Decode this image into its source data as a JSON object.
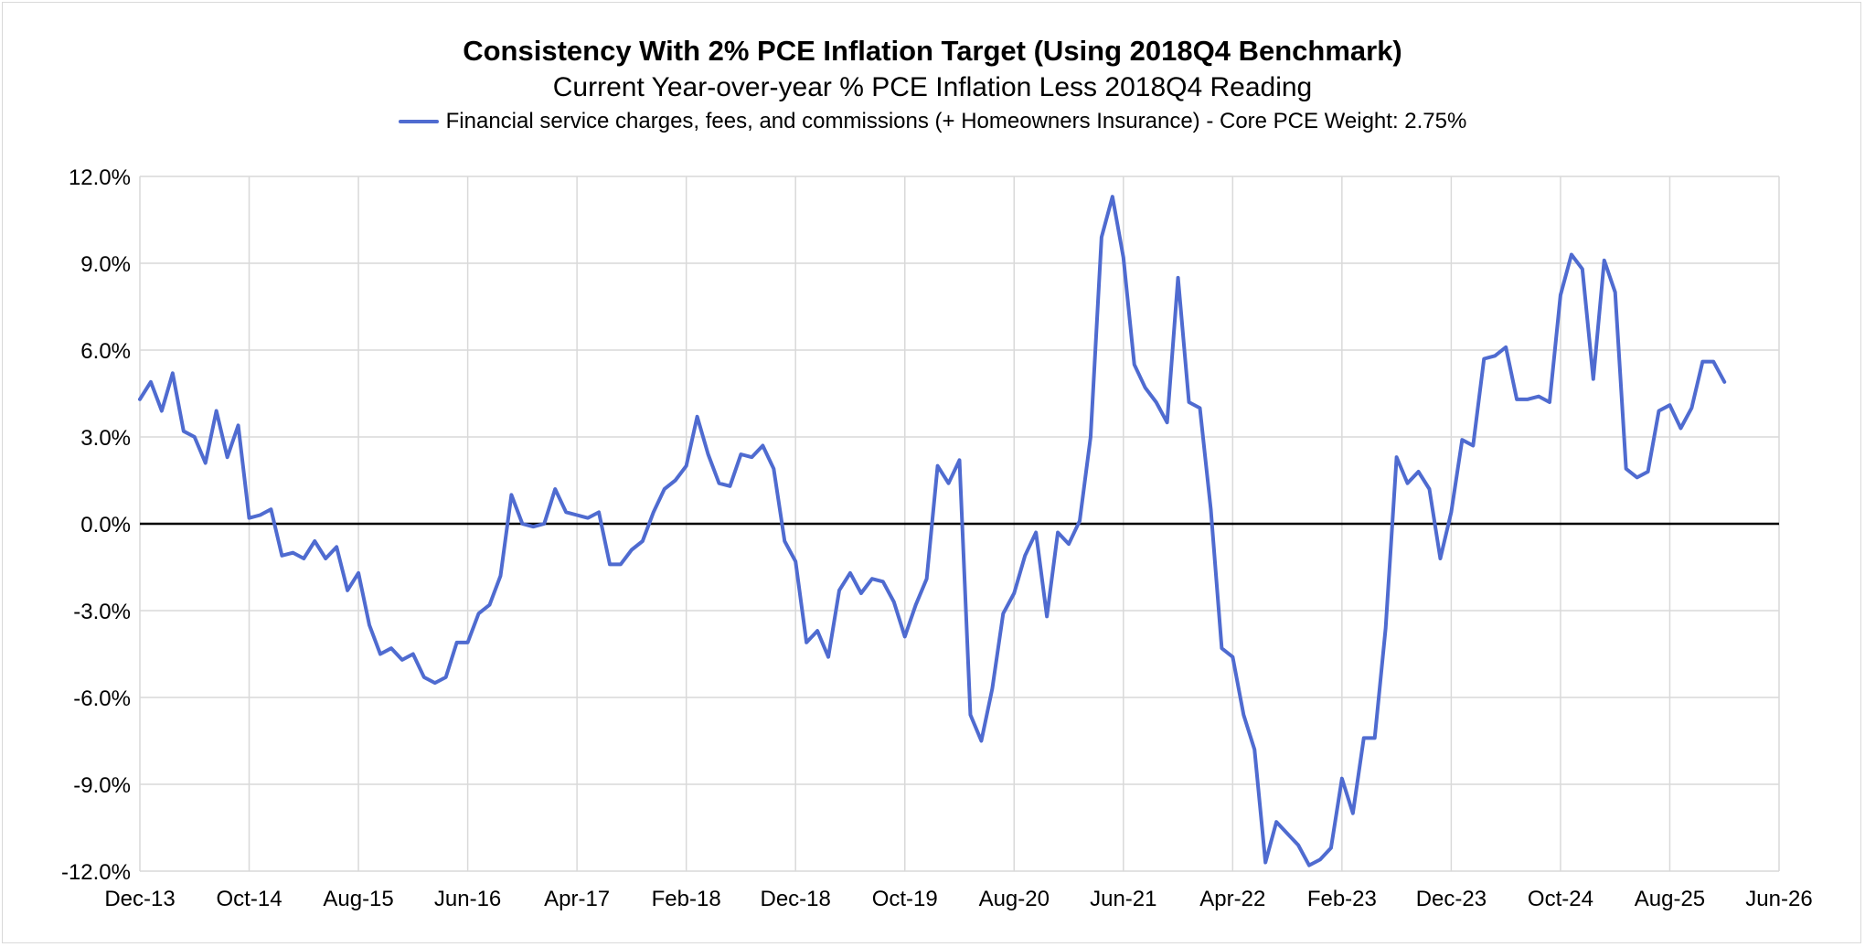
{
  "chart_data": {
    "type": "line",
    "title": "Consistency With 2% PCE Inflation Target (Using 2018Q4 Benchmark)",
    "subtitle": "Current Year-over-year % PCE Inflation Less 2018Q4 Reading",
    "xlabel": "",
    "ylabel": "",
    "ylim": [
      -12,
      12
    ],
    "y_ticks": [
      12,
      9,
      6,
      3,
      0,
      -3,
      -6,
      -9,
      -12
    ],
    "y_tick_labels": [
      "12.0%",
      "9.0%",
      "6.0%",
      "3.0%",
      "0.0%",
      "-3.0%",
      "-6.0%",
      "-9.0%",
      "-12.0%"
    ],
    "x_ticks": [
      "Dec-13",
      "Oct-14",
      "Aug-15",
      "Jun-16",
      "Apr-17",
      "Feb-18",
      "Dec-18",
      "Oct-19",
      "Aug-20",
      "Jun-21",
      "Apr-22",
      "Feb-23",
      "Dec-23",
      "Oct-24",
      "Aug-25",
      "Jun-26"
    ],
    "x_range_months": [
      0,
      150
    ],
    "start_month": "Dec-13",
    "grid": true,
    "legend": "top-center",
    "series": [
      {
        "name": "Financial service charges, fees, and commissions (+ Homeowners Insurance) - Core PCE Weight: 2.75%",
        "color": "#4f6bd0",
        "values": [
          4.3,
          4.9,
          3.9,
          5.2,
          3.2,
          3.0,
          2.1,
          3.9,
          2.3,
          3.4,
          0.2,
          0.3,
          0.5,
          -1.1,
          -1.0,
          -1.2,
          -0.6,
          -1.2,
          -0.8,
          -2.3,
          -1.7,
          -3.5,
          -4.5,
          -4.3,
          -4.7,
          -4.5,
          -5.3,
          -5.5,
          -5.3,
          -4.1,
          -4.1,
          -3.1,
          -2.8,
          -1.8,
          1.0,
          0.0,
          -0.1,
          0.0,
          1.2,
          0.4,
          0.3,
          0.2,
          0.4,
          -1.4,
          -1.4,
          -0.9,
          -0.6,
          0.4,
          1.2,
          1.5,
          2.0,
          3.7,
          2.4,
          1.4,
          1.3,
          2.4,
          2.3,
          2.7,
          1.9,
          -0.6,
          -1.3,
          -4.1,
          -3.7,
          -4.6,
          -2.3,
          -1.7,
          -2.4,
          -1.9,
          -2.0,
          -2.7,
          -3.9,
          -2.8,
          -1.9,
          2.0,
          1.4,
          2.2,
          -6.6,
          -7.5,
          -5.7,
          -3.1,
          -2.4,
          -1.1,
          -0.3,
          -3.2,
          -0.3,
          -0.7,
          0.1,
          3.0,
          9.9,
          11.3,
          9.2,
          5.5,
          4.7,
          4.2,
          3.5,
          8.5,
          4.2,
          4.0,
          0.5,
          -4.3,
          -4.6,
          -6.6,
          -7.8,
          -11.7,
          -10.3,
          -10.7,
          -11.1,
          -11.8,
          -11.6,
          -11.2,
          -8.8,
          -10.0,
          -7.4,
          -7.4,
          -3.6,
          2.3,
          1.4,
          1.8,
          1.2,
          -1.2,
          0.4,
          2.9,
          2.7,
          5.7,
          5.8,
          6.1,
          4.3,
          4.3,
          4.4,
          4.2,
          7.9,
          9.3,
          8.8,
          5.0,
          9.1,
          8.0,
          1.9,
          1.6,
          1.8,
          3.9,
          4.1,
          3.3,
          4.0,
          5.6,
          5.6,
          4.9
        ]
      }
    ]
  }
}
